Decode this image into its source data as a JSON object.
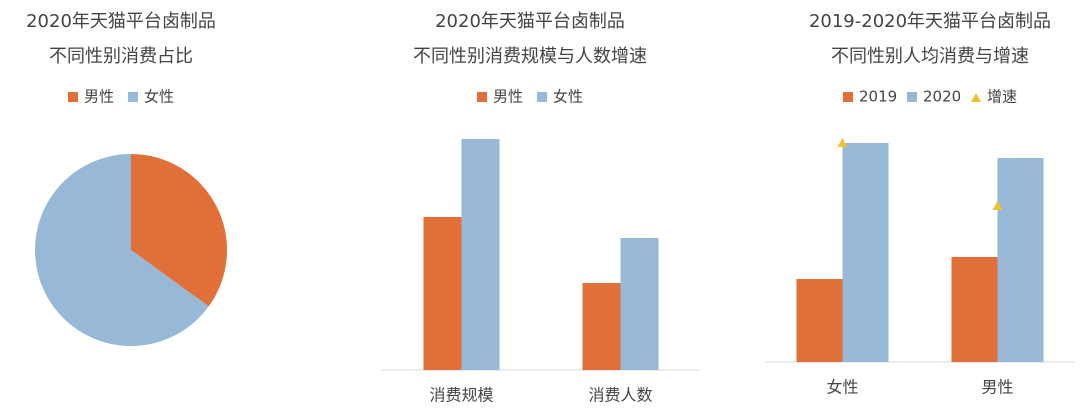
{
  "chart_data": [
    {
      "type": "pie",
      "title": [
        "2020年天猫平台卤制品",
        "不同性别消费占比"
      ],
      "categories": [
        "男性",
        "女性"
      ],
      "values": [
        35,
        65
      ],
      "colors": [
        "#e07038",
        "#97b8d6"
      ]
    },
    {
      "type": "bar",
      "title": [
        "2020年天猫平台卤制品",
        "不同性别消费规模与人数增速"
      ],
      "categories": [
        "消费规模",
        "消费人数"
      ],
      "ylim": [
        0,
        250
      ],
      "series": [
        {
          "name": "男性",
          "color": "#e07038",
          "values": [
            153,
            87
          ]
        },
        {
          "name": "女性",
          "color": "#97b8d6",
          "values": [
            231,
            132
          ]
        }
      ]
    },
    {
      "type": "bar",
      "title": [
        "2019-2020年天猫平台卤制品",
        "不同性别人均消费与增速"
      ],
      "categories": [
        "女性",
        "男性"
      ],
      "ylim": [
        0,
        250
      ],
      "y2lim": [
        0,
        250
      ],
      "series": [
        {
          "name": "2019",
          "color": "#e07038",
          "values": [
            83,
            105
          ]
        },
        {
          "name": "2020",
          "color": "#97b8d6",
          "values": [
            219,
            204
          ]
        },
        {
          "name": "增速",
          "color": "#f2c230",
          "values": [
            219,
            156
          ],
          "axis": "y2",
          "marker": "triangle"
        }
      ]
    }
  ]
}
